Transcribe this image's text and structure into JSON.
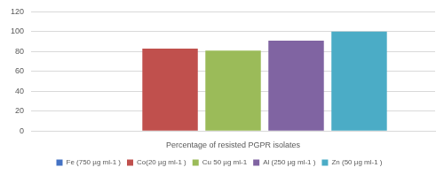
{
  "chart_data": {
    "type": "bar",
    "categories": [
      "Percentage of resisted PGPR isolates"
    ],
    "series": [
      {
        "name": "Fe (750 µg ml-1 )",
        "color": "#4472c4",
        "values": [
          0
        ]
      },
      {
        "name": "Co(20 µg ml-1 )",
        "color": "#c0504d",
        "values": [
          83
        ]
      },
      {
        "name": "Cu 50 µg ml-1",
        "color": "#9bbb59",
        "values": [
          81
        ]
      },
      {
        "name": "Al (250 µg ml-1 )",
        "color": "#8064a2",
        "values": [
          91
        ]
      },
      {
        "name": "Zn (50 µg ml-1 )",
        "color": "#4bacc6",
        "values": [
          100
        ]
      }
    ],
    "ylim": [
      0,
      120
    ],
    "yticks": [
      0,
      20,
      40,
      60,
      80,
      100,
      120
    ],
    "grid": true,
    "legend": "bottom"
  }
}
